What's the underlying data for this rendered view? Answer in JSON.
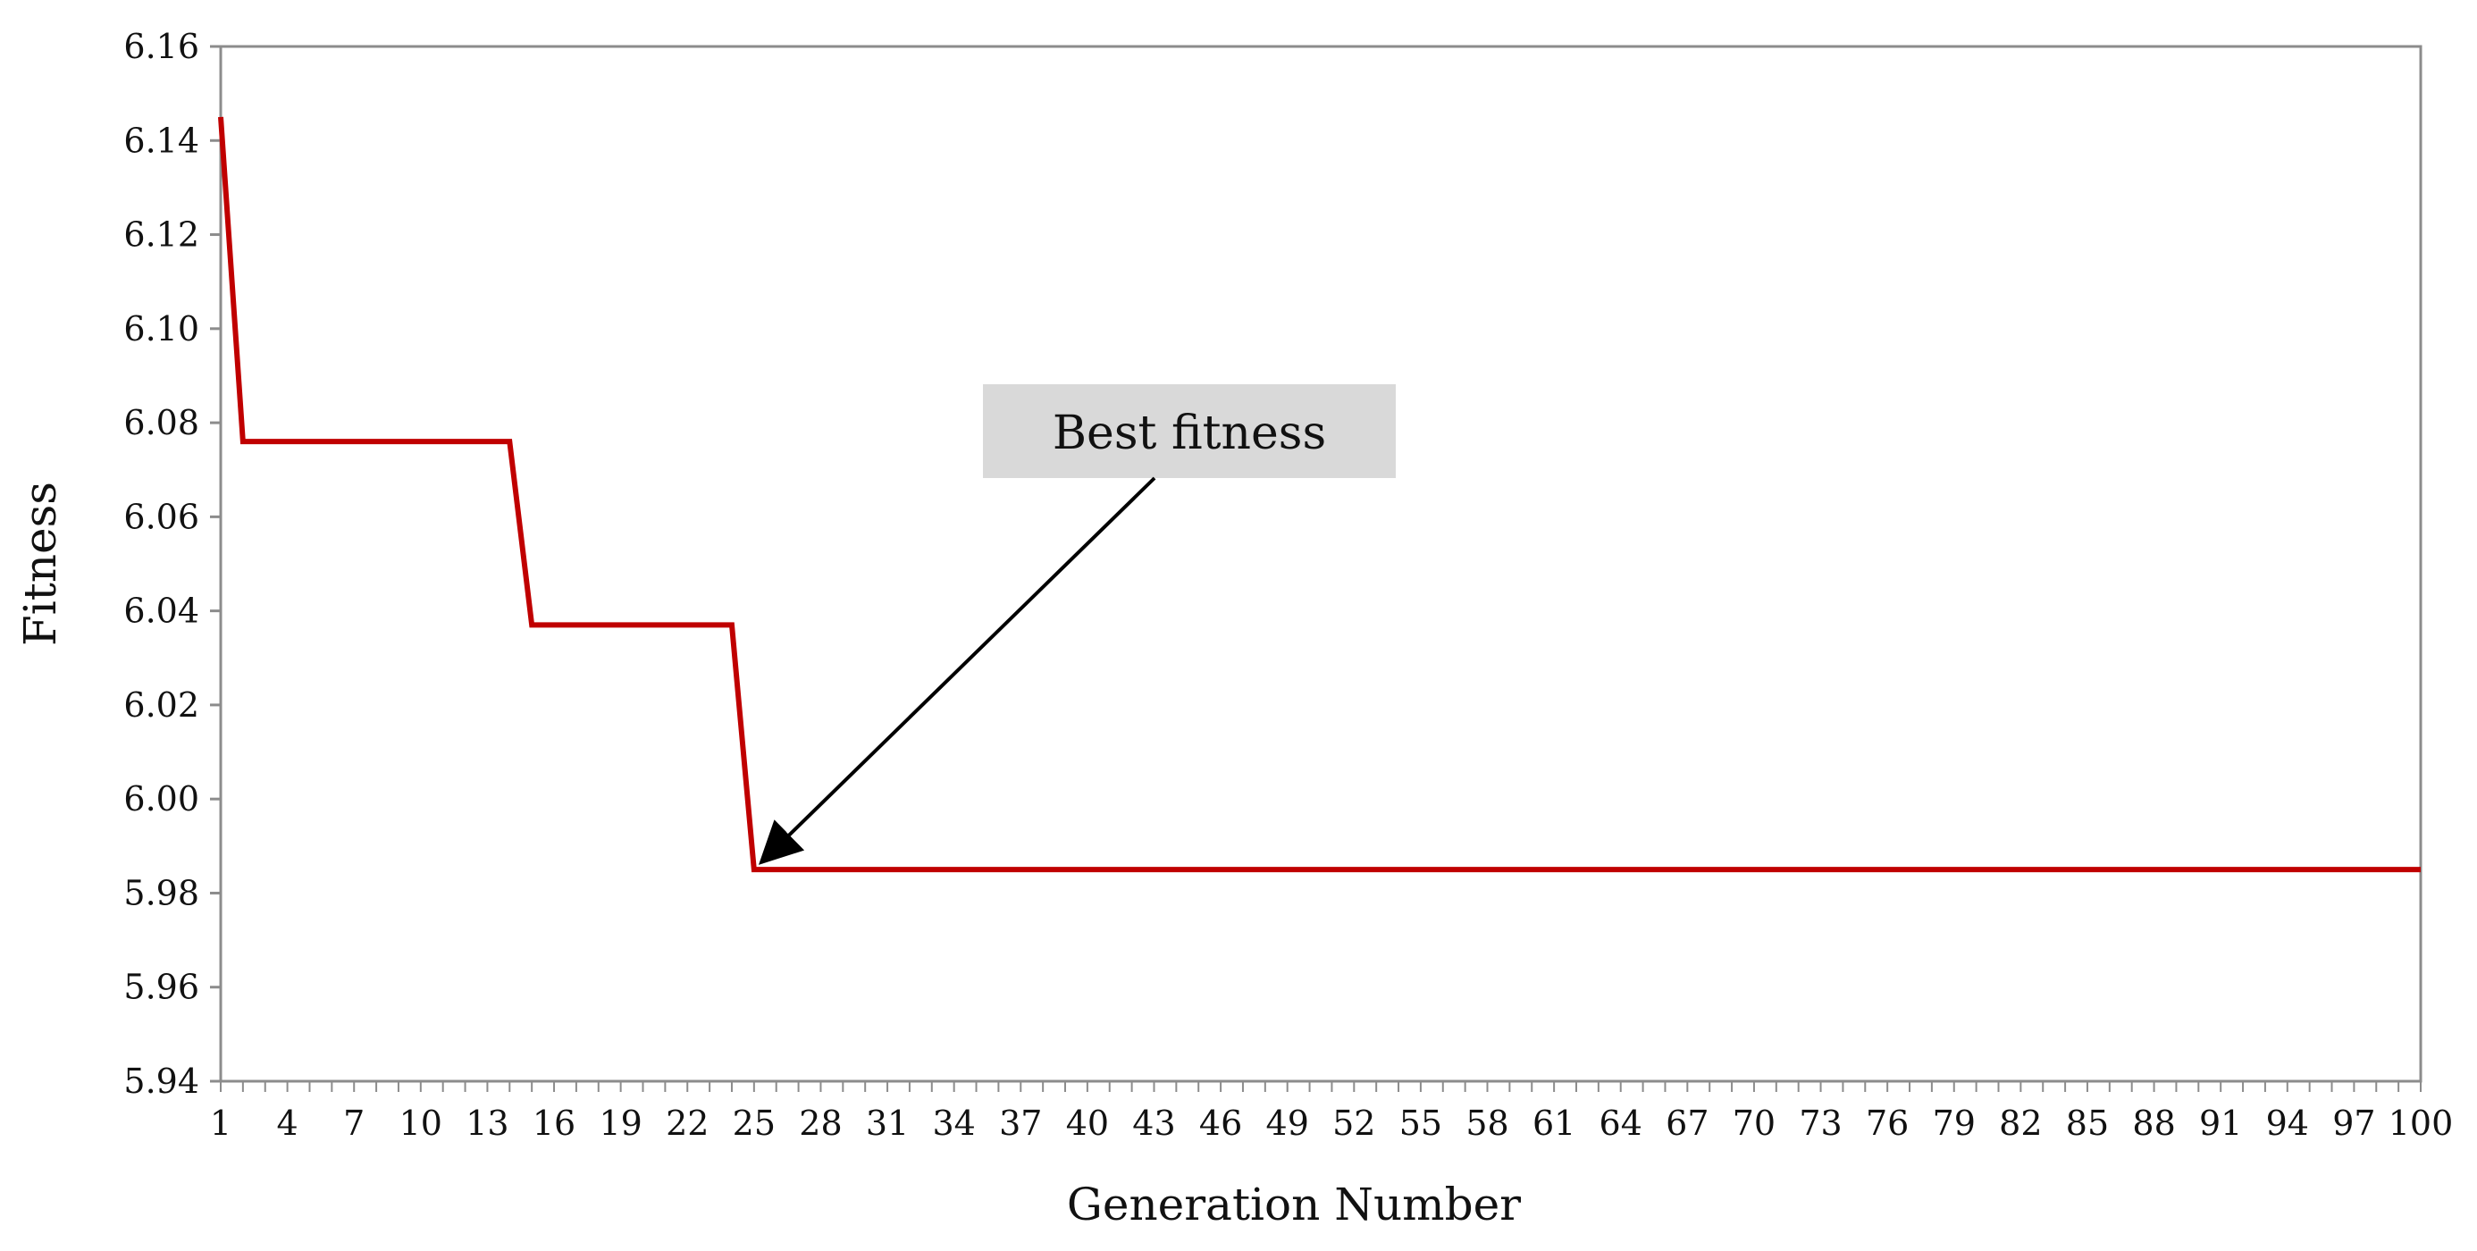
{
  "chart_data": {
    "type": "line",
    "title": "",
    "xlabel": "Generation Number",
    "ylabel": "Fitness",
    "xlim": [
      1,
      100
    ],
    "ylim": [
      5.94,
      6.16
    ],
    "yticks": [
      "6.16",
      "6.14",
      "6.12",
      "6.10",
      "6.08",
      "6.06",
      "6.04",
      "6.02",
      "6.00",
      "5.98",
      "5.96",
      "5.94"
    ],
    "yticks_values": [
      6.16,
      6.14,
      6.12,
      6.1,
      6.08,
      6.06,
      6.04,
      6.02,
      6.0,
      5.98,
      5.96,
      5.94
    ],
    "xticks": [
      "1",
      "4",
      "7",
      "10",
      "13",
      "16",
      "19",
      "22",
      "25",
      "28",
      "31",
      "34",
      "37",
      "40",
      "43",
      "46",
      "49",
      "52",
      "55",
      "58",
      "61",
      "64",
      "67",
      "70",
      "73",
      "76",
      "79",
      "82",
      "85",
      "88",
      "91",
      "94",
      "97",
      "100"
    ],
    "grid": false,
    "legend": "none",
    "series": [
      {
        "color": "#c00000",
        "x": [
          1,
          2,
          14,
          15,
          24,
          25,
          100
        ],
        "y": [
          6.145,
          6.076,
          6.076,
          6.037,
          6.037,
          5.985,
          5.985
        ]
      }
    ],
    "annotations": [
      {
        "text": "Best fitness",
        "target": [
          25,
          5.985
        ]
      }
    ]
  }
}
